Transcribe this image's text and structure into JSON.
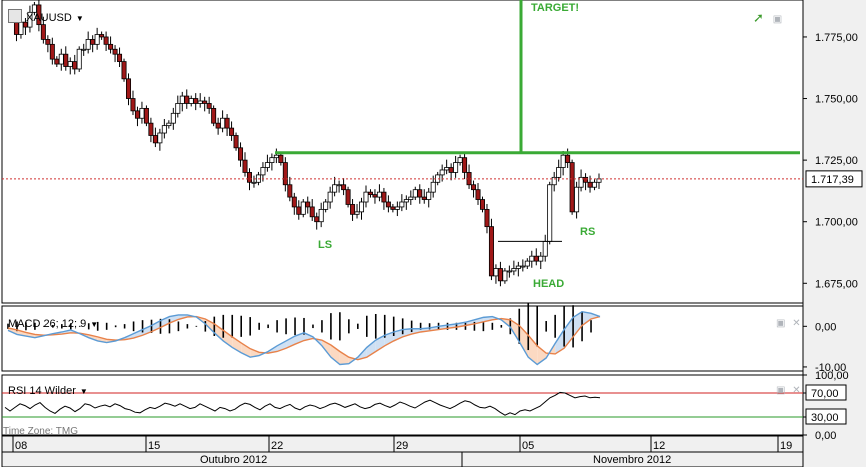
{
  "main": {
    "symbol": "XAUUSD",
    "target_label": "TARGET!",
    "pattern_labels": {
      "ls": "LS",
      "head": "HEAD",
      "rs": "RS"
    },
    "last_price_label": "1.717,39"
  },
  "macd": {
    "title": "MACD 26; 12; 9"
  },
  "rsi": {
    "title": "RSI 14 Wilder"
  },
  "footer": {
    "timezone": "Time Zone: TMG"
  },
  "colors": {
    "up_candle": "#ffffff",
    "down_candle": "#a01818",
    "neckline": "#3aaa35",
    "pattern_text": "#3aaa35",
    "macd_line": "#5b9bd5",
    "signal_line": "#e8824a",
    "macd_fill_blue": "#cfe0f3",
    "macd_fill_orange": "#fbd9c2",
    "rsi_overbought": "#d02020",
    "rsi_oversold": "#2a9a2a"
  },
  "chart_data": [
    {
      "type": "candlestick",
      "title": "XAUUSD",
      "y_ticks": [
        "1.775,00",
        "1.750,00",
        "1.725,00",
        "1.700,00",
        "1.675,00"
      ],
      "y_tick_values": [
        1775,
        1750,
        1725,
        1700,
        1675
      ],
      "ylim": [
        1667,
        1790
      ],
      "x_ticks": [
        "08",
        "15",
        "22",
        "29",
        "05",
        "12",
        "19"
      ],
      "months": [
        "Outubro 2012",
        "Novembro 2012"
      ],
      "current_price": 1717.39,
      "neckline": 1728,
      "neckline_range": [
        "22",
        "19"
      ],
      "target_line": {
        "from": 1728,
        "to": 1790,
        "label": "TARGET!"
      },
      "head_box_top": 1692,
      "bars": [
        1783,
        1776,
        1781,
        1779,
        1785,
        1788,
        1780,
        1774,
        1772,
        1766,
        1764,
        1768,
        1763,
        1765,
        1762,
        1770,
        1770,
        1774,
        1772,
        1776,
        1775,
        1772,
        1770,
        1768,
        1765,
        1758,
        1750,
        1745,
        1742,
        1746,
        1740,
        1735,
        1732,
        1736,
        1739,
        1740,
        1744,
        1748,
        1751,
        1748,
        1750,
        1748,
        1749,
        1748,
        1746,
        1740,
        1738,
        1742,
        1738,
        1735,
        1730,
        1725,
        1720,
        1716,
        1716,
        1719,
        1722,
        1724,
        1726,
        1727,
        1724,
        1715,
        1710,
        1706,
        1703,
        1708,
        1706,
        1702,
        1700,
        1705,
        1708,
        1712,
        1715,
        1715,
        1713,
        1707,
        1703,
        1704,
        1708,
        1712,
        1711,
        1710,
        1712,
        1708,
        1706,
        1705,
        1706,
        1708,
        1709,
        1710,
        1713,
        1710,
        1709,
        1712,
        1716,
        1719,
        1721,
        1722,
        1720,
        1724,
        1726,
        1720,
        1715,
        1713,
        1709,
        1705,
        1698,
        1678,
        1681,
        1676,
        1680,
        1680,
        1681,
        1682,
        1682,
        1684,
        1686,
        1684,
        1686,
        1692,
        1715,
        1718,
        1722,
        1727,
        1724,
        1704,
        1714,
        1718,
        1716,
        1714,
        1716,
        1717.39
      ]
    },
    {
      "type": "line",
      "title": "MACD 26; 12; 9",
      "y_ticks": [
        "0,00",
        "-10,00"
      ],
      "y_tick_values": [
        0,
        -10
      ],
      "ylim": [
        -11,
        5
      ],
      "series": [
        {
          "name": "MACD",
          "values": [
            -1.0,
            -2.0,
            -2.4,
            -2.8,
            -2.3,
            -1.8,
            -1.4,
            -0.9,
            -1.8,
            -2.8,
            -3.6,
            -4.0,
            -3.6,
            -2.8,
            -1.8,
            -0.8,
            0.2,
            1.4,
            2.4,
            2.8,
            2.8,
            2.3,
            0.6,
            -1.6,
            -3.6,
            -5.2,
            -6.5,
            -7.6,
            -7.2,
            -6.2,
            -4.8,
            -3.6,
            -2.4,
            -1.6,
            -2.6,
            -4.8,
            -7.6,
            -9.4,
            -9.2,
            -7.6,
            -5.2,
            -3.4,
            -2.2,
            -1.4,
            -0.8,
            -0.6,
            -0.6,
            -0.4,
            0.0,
            0.3,
            0.6,
            1.0,
            1.6,
            2.2,
            2.4,
            1.6,
            -0.2,
            -3.8,
            -7.6,
            -9.4,
            -7.8,
            -4.2,
            -0.8,
            2.2,
            3.6,
            3.2,
            2.4
          ]
        },
        {
          "name": "Signal",
          "values": [
            -0.4,
            -0.9,
            -1.5,
            -2.0,
            -2.2,
            -2.1,
            -1.9,
            -1.6,
            -1.7,
            -2.1,
            -2.6,
            -3.2,
            -3.4,
            -3.3,
            -2.9,
            -2.2,
            -1.3,
            -0.3,
            0.8,
            1.7,
            2.3,
            2.4,
            1.8,
            0.6,
            -1.0,
            -2.6,
            -4.1,
            -5.5,
            -6.4,
            -6.6,
            -6.2,
            -5.4,
            -4.4,
            -3.5,
            -3.0,
            -3.4,
            -4.6,
            -6.2,
            -7.6,
            -8.2,
            -7.6,
            -6.2,
            -4.8,
            -3.6,
            -2.6,
            -1.9,
            -1.4,
            -1.1,
            -0.8,
            -0.5,
            -0.2,
            0.2,
            0.6,
            1.1,
            1.6,
            1.9,
            1.6,
            0.2,
            -2.2,
            -4.8,
            -6.6,
            -6.8,
            -5.4,
            -2.6,
            0.2,
            1.8,
            2.4
          ]
        }
      ],
      "histogram_note": "black vertical bars = MACD − Signal"
    },
    {
      "type": "line",
      "title": "RSI 14 Wilder",
      "y_ticks": [
        "100,00",
        "70,00",
        "30,00",
        "0,00"
      ],
      "y_tick_values": [
        100,
        70,
        30,
        0
      ],
      "ylim": [
        0,
        100
      ],
      "levels": [
        70,
        30
      ],
      "series": [
        {
          "name": "RSI",
          "values": [
            46,
            40,
            46,
            52,
            49,
            44,
            50,
            54,
            46,
            40,
            36,
            43,
            48,
            45,
            39,
            44,
            52,
            50,
            45,
            48,
            50,
            47,
            52,
            49,
            44,
            42,
            38,
            37,
            42,
            46,
            44,
            48,
            53,
            51,
            48,
            52,
            48,
            44,
            46,
            52,
            48,
            44,
            40,
            46,
            44,
            40,
            43,
            49,
            53,
            51,
            46,
            42,
            48,
            52,
            46,
            44,
            48,
            51,
            45,
            42,
            47,
            50,
            48,
            44,
            47,
            51,
            53,
            50,
            46,
            49,
            52,
            47,
            44,
            46,
            51,
            53,
            49,
            46,
            50,
            55,
            52,
            48,
            45,
            50,
            55,
            58,
            54,
            50,
            47,
            44,
            48,
            53,
            57,
            55,
            50,
            46,
            45,
            48,
            44,
            38,
            33,
            37,
            34,
            40,
            42,
            40,
            44,
            48,
            55,
            62,
            66,
            71,
            70,
            66,
            62,
            64,
            65,
            62,
            63,
            62
          ]
        }
      ]
    }
  ]
}
